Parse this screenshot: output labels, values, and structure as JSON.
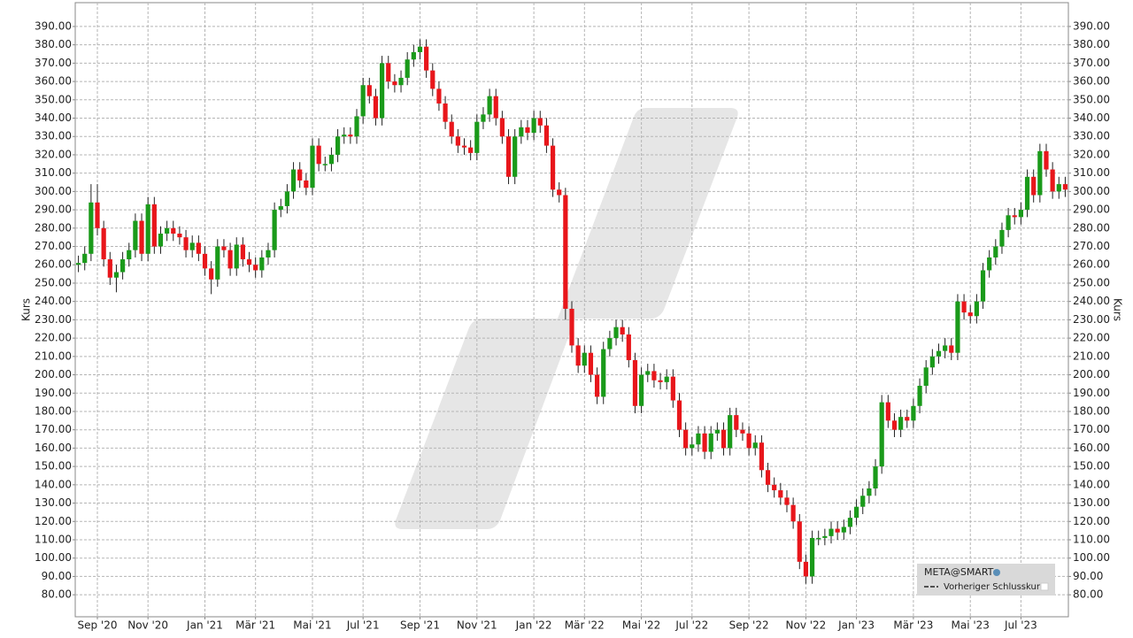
{
  "chart_data": {
    "type": "candlestick",
    "y_label": "Kurs",
    "up_color": "#1a9a1a",
    "down_color": "#e8161b",
    "grid": true,
    "legend_position": "lower right",
    "ylim": [
      68,
      403
    ],
    "yticks": [
      {
        "value": 80,
        "label": "80.00"
      },
      {
        "value": 90,
        "label": "90.00"
      },
      {
        "value": 100,
        "label": "100.00"
      },
      {
        "value": 110,
        "label": "110.00"
      },
      {
        "value": 120,
        "label": "120.00"
      },
      {
        "value": 130,
        "label": "130.00"
      },
      {
        "value": 140,
        "label": "140.00"
      },
      {
        "value": 150,
        "label": "150.00"
      },
      {
        "value": 160,
        "label": "160.00"
      },
      {
        "value": 170,
        "label": "170.00"
      },
      {
        "value": 180,
        "label": "180.00"
      },
      {
        "value": 190,
        "label": "190.00"
      },
      {
        "value": 200,
        "label": "200.00"
      },
      {
        "value": 210,
        "label": "210.00"
      },
      {
        "value": 220,
        "label": "220.00"
      },
      {
        "value": 230,
        "label": "230.00"
      },
      {
        "value": 240,
        "label": "240.00"
      },
      {
        "value": 250,
        "label": "250.00"
      },
      {
        "value": 260,
        "label": "260.00"
      },
      {
        "value": 270,
        "label": "270.00"
      },
      {
        "value": 280,
        "label": "280.00"
      },
      {
        "value": 290,
        "label": "290.00"
      },
      {
        "value": 300,
        "label": "300.00"
      },
      {
        "value": 310,
        "label": "310.00"
      },
      {
        "value": 320,
        "label": "320.00"
      },
      {
        "value": 330,
        "label": "330.00"
      },
      {
        "value": 340,
        "label": "340.00"
      },
      {
        "value": 350,
        "label": "350.00"
      },
      {
        "value": 360,
        "label": "360.00"
      },
      {
        "value": 370,
        "label": "370.00"
      },
      {
        "value": 380,
        "label": "380.00"
      },
      {
        "value": 390,
        "label": "390.00"
      }
    ],
    "categories": [
      null,
      null,
      null,
      "Sep '20",
      null,
      null,
      null,
      null,
      null,
      null,
      null,
      "Nov '20",
      null,
      null,
      null,
      null,
      null,
      null,
      null,
      null,
      "Jan '21",
      null,
      null,
      null,
      null,
      null,
      null,
      null,
      "Mär '21",
      null,
      null,
      null,
      null,
      null,
      null,
      null,
      null,
      "Mai '21",
      null,
      null,
      null,
      null,
      null,
      null,
      null,
      "Jul '21",
      null,
      null,
      null,
      null,
      null,
      null,
      null,
      null,
      "Sep '21",
      null,
      null,
      null,
      null,
      null,
      null,
      null,
      null,
      "Nov '21",
      null,
      null,
      null,
      null,
      null,
      null,
      null,
      null,
      "Jan '22",
      null,
      null,
      null,
      null,
      null,
      null,
      null,
      "Mär '22",
      null,
      null,
      null,
      null,
      null,
      null,
      null,
      null,
      "Mai '22",
      null,
      null,
      null,
      null,
      null,
      null,
      null,
      "Jul '22",
      null,
      null,
      null,
      null,
      null,
      null,
      null,
      null,
      "Sep '22",
      null,
      null,
      null,
      null,
      null,
      null,
      null,
      null,
      "Nov '22",
      null,
      null,
      null,
      null,
      null,
      null,
      null,
      "Jan '23",
      null,
      null,
      null,
      null,
      null,
      null,
      null,
      null,
      "Mär '23",
      null,
      null,
      null,
      null,
      null,
      null,
      null,
      null,
      "Mai '23",
      null,
      null,
      null,
      null,
      null,
      null,
      null,
      "Jul '23",
      null,
      null,
      null,
      null,
      null,
      null,
      null
    ],
    "series": [
      {
        "name": "META@SMART",
        "open": [
          260,
          261,
          266,
          294,
          280,
          263,
          253,
          256,
          263,
          268,
          284,
          266,
          293,
          270,
          277,
          280,
          277,
          275,
          268,
          272,
          266,
          258,
          252,
          270,
          268,
          258,
          271,
          263,
          260,
          257,
          264,
          268,
          290,
          292,
          300,
          312,
          306,
          302,
          325,
          315,
          315,
          320,
          330,
          331,
          330,
          341,
          358,
          352,
          340,
          370,
          360,
          358,
          362,
          372,
          376,
          379,
          366,
          356,
          348,
          338,
          330,
          325,
          324,
          321,
          338,
          342,
          352,
          340,
          330,
          308,
          330,
          335,
          332,
          340,
          336,
          325,
          301,
          298,
          236,
          216,
          205,
          212,
          200,
          188,
          214,
          220,
          226,
          222,
          208,
          183,
          200,
          202,
          197,
          196,
          199,
          186,
          170,
          160,
          162,
          168,
          158,
          168,
          170,
          160,
          178,
          170,
          168,
          160,
          163,
          148,
          140,
          137,
          133,
          129,
          120,
          98,
          90,
          111,
          111,
          112,
          116,
          114,
          117,
          122,
          128,
          134,
          138,
          150,
          185,
          175,
          170,
          177,
          175,
          183,
          194,
          204,
          210,
          213,
          216,
          212,
          240,
          234,
          232,
          240,
          257,
          264,
          270,
          279,
          287,
          286,
          290,
          308,
          298,
          322,
          312,
          300,
          304
        ],
        "high": [
          265,
          270,
          304,
          304,
          284,
          267,
          260,
          267,
          272,
          288,
          288,
          297,
          297,
          281,
          284,
          284,
          281,
          279,
          276,
          276,
          270,
          262,
          274,
          274,
          272,
          275,
          275,
          267,
          264,
          268,
          272,
          294,
          296,
          304,
          316,
          316,
          310,
          329,
          329,
          319,
          324,
          334,
          335,
          335,
          345,
          362,
          362,
          356,
          374,
          374,
          364,
          366,
          376,
          380,
          383,
          383,
          370,
          360,
          352,
          342,
          334,
          329,
          328,
          342,
          346,
          356,
          356,
          344,
          334,
          334,
          339,
          339,
          344,
          344,
          340,
          329,
          305,
          302,
          240,
          220,
          216,
          216,
          204,
          218,
          224,
          230,
          230,
          226,
          212,
          204,
          206,
          206,
          201,
          203,
          203,
          190,
          174,
          166,
          172,
          172,
          172,
          174,
          174,
          182,
          182,
          174,
          172,
          167,
          167,
          152,
          144,
          141,
          137,
          133,
          124,
          102,
          115,
          115,
          116,
          120,
          120,
          121,
          126,
          132,
          138,
          142,
          154,
          189,
          189,
          179,
          181,
          181,
          187,
          198,
          208,
          214,
          217,
          220,
          220,
          244,
          244,
          238,
          244,
          261,
          268,
          274,
          283,
          291,
          291,
          294,
          312,
          312,
          326,
          326,
          316,
          308,
          308
        ],
        "low": [
          256,
          257,
          262,
          276,
          259,
          249,
          245,
          252,
          259,
          264,
          262,
          262,
          266,
          266,
          273,
          273,
          271,
          264,
          264,
          262,
          254,
          244,
          248,
          264,
          254,
          254,
          259,
          256,
          253,
          253,
          260,
          264,
          286,
          288,
          296,
          302,
          298,
          298,
          311,
          311,
          311,
          316,
          326,
          326,
          326,
          337,
          348,
          336,
          336,
          356,
          354,
          354,
          358,
          368,
          372,
          362,
          352,
          344,
          334,
          326,
          321,
          320,
          317,
          317,
          334,
          338,
          336,
          326,
          304,
          304,
          326,
          328,
          328,
          332,
          321,
          297,
          294,
          230,
          212,
          201,
          201,
          196,
          184,
          184,
          210,
          216,
          218,
          204,
          179,
          179,
          196,
          193,
          192,
          192,
          182,
          166,
          156,
          156,
          158,
          154,
          154,
          164,
          156,
          156,
          166,
          164,
          156,
          156,
          144,
          136,
          133,
          129,
          125,
          116,
          94,
          86,
          86,
          107,
          107,
          108,
          110,
          110,
          113,
          118,
          124,
          130,
          134,
          146,
          171,
          166,
          166,
          171,
          171,
          179,
          190,
          200,
          206,
          209,
          208,
          208,
          230,
          228,
          228,
          236,
          253,
          260,
          266,
          275,
          282,
          282,
          286,
          294,
          294,
          308,
          296,
          296,
          297
        ],
        "close": [
          261,
          266,
          294,
          280,
          263,
          253,
          256,
          263,
          268,
          284,
          266,
          293,
          270,
          277,
          280,
          277,
          275,
          268,
          272,
          266,
          258,
          252,
          270,
          268,
          258,
          271,
          263,
          260,
          257,
          264,
          268,
          290,
          292,
          300,
          312,
          306,
          302,
          325,
          315,
          315,
          320,
          330,
          331,
          330,
          341,
          358,
          352,
          340,
          370,
          360,
          358,
          362,
          372,
          376,
          379,
          366,
          356,
          348,
          338,
          330,
          325,
          324,
          321,
          338,
          342,
          352,
          340,
          330,
          308,
          330,
          335,
          332,
          340,
          336,
          325,
          301,
          298,
          236,
          216,
          205,
          212,
          200,
          188,
          214,
          220,
          226,
          222,
          208,
          183,
          200,
          202,
          197,
          196,
          199,
          186,
          170,
          160,
          162,
          168,
          158,
          168,
          170,
          160,
          178,
          170,
          168,
          160,
          163,
          148,
          140,
          137,
          133,
          129,
          120,
          98,
          90,
          111,
          111,
          112,
          116,
          114,
          117,
          122,
          128,
          134,
          138,
          150,
          185,
          175,
          170,
          177,
          175,
          183,
          194,
          204,
          210,
          213,
          216,
          212,
          240,
          234,
          232,
          240,
          257,
          264,
          270,
          279,
          287,
          286,
          290,
          308,
          298,
          322,
          312,
          300,
          304,
          301
        ]
      }
    ],
    "reference_line": {
      "name": "Vorheriger Schlusskurs"
    }
  }
}
